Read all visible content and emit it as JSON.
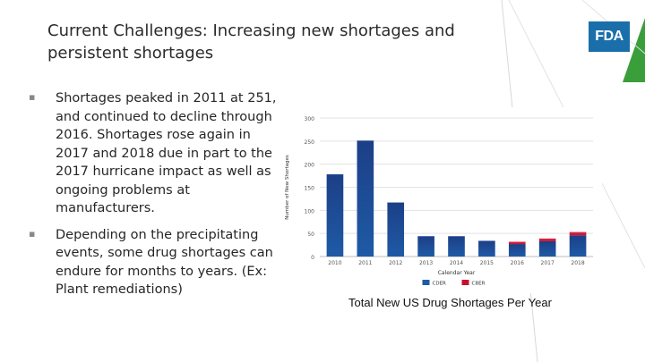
{
  "slide": {
    "title_line1": "Current Challenges: Increasing new shortages and",
    "title_line2": "persistent shortages",
    "logo_text": "FDA",
    "bullets": [
      {
        "marker": "▪",
        "text": "Shortages peaked in 2011 at 251, and continued to decline through 2016. Shortages rose again in 2017 and 2018 due in part to the 2017 hurricane impact as well as ongoing problems at manufacturers."
      },
      {
        "marker": "▪",
        "text": "Depending on the precipitating events, some drug shortages can endure for months to years. (Ex: Plant remediations)"
      }
    ],
    "caption": "Total New US Drug Shortages Per Year"
  },
  "colors": {
    "cder": "#1f5aa6",
    "cber": "#c8102e",
    "accent": "#3a9e3a",
    "logo": "#1a6faa"
  },
  "chart_data": {
    "type": "bar",
    "categories": [
      "2010",
      "2011",
      "2012",
      "2013",
      "2014",
      "2015",
      "2016",
      "2017",
      "2018"
    ],
    "series": [
      {
        "name": "CDER",
        "values": [
          178,
          251,
          117,
          44,
          44,
          34,
          27,
          33,
          46
        ]
      },
      {
        "name": "CBER",
        "values": [
          0,
          0,
          0,
          0,
          0,
          0,
          5,
          6,
          7
        ]
      }
    ],
    "stacked": true,
    "xlabel": "Calendar Year",
    "ylabel": "Number of New Shortages",
    "ylim": [
      0,
      300
    ],
    "yticks": [
      0,
      50,
      100,
      150,
      200,
      250,
      300
    ],
    "grid": true,
    "legend": "bottom"
  }
}
